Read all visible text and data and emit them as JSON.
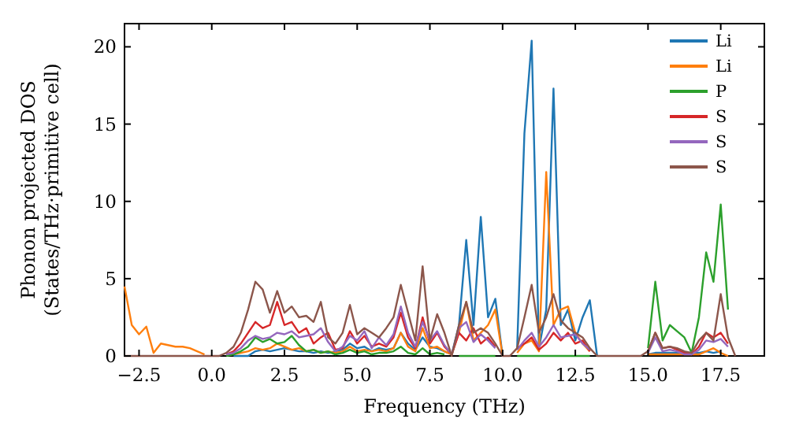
{
  "chart_data": {
    "type": "line",
    "xlabel": "Frequency (THz)",
    "ylabel": "Phonon projected DOS\n(States/THz·primitive cell)",
    "x": [
      -3,
      -2.75,
      -2.5,
      -2.25,
      -2,
      -1.75,
      -1.5,
      -1.25,
      -1,
      -0.75,
      -0.5,
      -0.25,
      0,
      0.25,
      0.5,
      0.75,
      1,
      1.25,
      1.5,
      1.75,
      2,
      2.25,
      2.5,
      2.75,
      3,
      3.25,
      3.5,
      3.75,
      4,
      4.25,
      4.5,
      4.75,
      5,
      5.25,
      5.5,
      5.75,
      6,
      6.25,
      6.5,
      6.75,
      7,
      7.25,
      7.5,
      7.75,
      8,
      8.25,
      8.5,
      8.75,
      9,
      9.25,
      9.5,
      9.75,
      10,
      10.25,
      10.5,
      10.75,
      11,
      11.25,
      11.5,
      11.75,
      12,
      12.25,
      12.5,
      12.75,
      13,
      13.25,
      13.5,
      13.75,
      14,
      14.25,
      14.5,
      14.75,
      15,
      15.25,
      15.5,
      15.75,
      16,
      16.25,
      16.5,
      16.75,
      17,
      17.25,
      17.5,
      17.75,
      18
    ],
    "series": [
      {
        "name": "Li",
        "color": "#1f77b4",
        "values": [
          null,
          null,
          null,
          null,
          null,
          null,
          null,
          null,
          null,
          null,
          null,
          null,
          null,
          null,
          null,
          0,
          0,
          0,
          0.3,
          0.4,
          0.3,
          0.4,
          0.5,
          0.4,
          0.3,
          0.3,
          0.2,
          0.3,
          0.2,
          0.3,
          0.4,
          0.8,
          0.5,
          0.6,
          0.3,
          0.5,
          0.4,
          0.5,
          1.5,
          0.8,
          0.4,
          1.2,
          0.6,
          0.5,
          0.3,
          0.1,
          2,
          7.5,
          2,
          9,
          2.5,
          3.7,
          0,
          null,
          0.5,
          14.4,
          20.4,
          0.5,
          3,
          17.3,
          2,
          3,
          1,
          2.5,
          3.6,
          0,
          null,
          null,
          null,
          null,
          null,
          null,
          0.1,
          0.2,
          0.2,
          0.2,
          0.2,
          0.2,
          0.2,
          0.2,
          0.3,
          0.2,
          0.3,
          null,
          null
        ]
      },
      {
        "name": "Li",
        "color": "#ff7f0e",
        "values": [
          4.5,
          2,
          1.4,
          1.9,
          0.2,
          0.8,
          0.7,
          0.6,
          0.6,
          0.5,
          0.3,
          0.1,
          null,
          null,
          null,
          0.1,
          0.2,
          0.3,
          0.5,
          0.4,
          0.5,
          0.8,
          0.6,
          0.4,
          0.5,
          0.3,
          0.4,
          0.2,
          0.3,
          0.2,
          0.3,
          0.6,
          0.3,
          0.4,
          0.3,
          0.4,
          0.3,
          0.5,
          1.5,
          0.6,
          0.3,
          1.8,
          0.5,
          0.6,
          0.3,
          0.1,
          1.5,
          3.5,
          1,
          1.5,
          2,
          3,
          0,
          null,
          0.2,
          0.8,
          1,
          0.3,
          11.9,
          2,
          3,
          3.2,
          1.5,
          0.8,
          0.3,
          null,
          null,
          null,
          null,
          null,
          null,
          null,
          0.1,
          0.1,
          0.1,
          0.1,
          0.1,
          0.1,
          0.1,
          0.1,
          0.3,
          0.5,
          0.2,
          0,
          null
        ]
      },
      {
        "name": "P",
        "color": "#2ca02c",
        "values": [
          null,
          null,
          null,
          null,
          null,
          null,
          null,
          null,
          null,
          null,
          null,
          null,
          null,
          null,
          0,
          0.1,
          0.3,
          0.6,
          1.2,
          0.9,
          1.1,
          0.8,
          0.9,
          1.3,
          0.7,
          0.3,
          0.4,
          0.2,
          0.3,
          0.1,
          0.2,
          0.4,
          0.2,
          0.3,
          0.1,
          0.2,
          0.2,
          0.3,
          0.6,
          0.2,
          0.1,
          0.5,
          0.1,
          0.2,
          0.1,
          null,
          0,
          0,
          0,
          0,
          0,
          0,
          null,
          null,
          0,
          0,
          0,
          0,
          0,
          0,
          0,
          0,
          0,
          0,
          0,
          null,
          null,
          null,
          null,
          null,
          null,
          null,
          0.5,
          4.8,
          1,
          2,
          1.6,
          1.2,
          0.2,
          2.5,
          6.7,
          4.8,
          9.8,
          3,
          null
        ]
      },
      {
        "name": "S",
        "color": "#d62728",
        "values": [
          null,
          null,
          null,
          null,
          null,
          null,
          null,
          null,
          null,
          null,
          null,
          null,
          null,
          null,
          0.1,
          0.3,
          0.8,
          1.5,
          2.2,
          1.8,
          2,
          3.5,
          2,
          2.2,
          1.5,
          1.8,
          0.8,
          1.2,
          1.5,
          0.4,
          0.5,
          1.6,
          0.8,
          1.3,
          0.6,
          0.8,
          0.6,
          1.2,
          2.8,
          1.2,
          0.5,
          2.5,
          0.8,
          1.5,
          0.6,
          0.1,
          1.5,
          1,
          1.8,
          0.8,
          1.2,
          0.6,
          null,
          null,
          0.5,
          0.8,
          1.2,
          0.4,
          0.8,
          1.5,
          1,
          1.5,
          0.8,
          1,
          0.3,
          null,
          null,
          null,
          null,
          null,
          null,
          null,
          0.3,
          1.5,
          0.5,
          0.6,
          0.4,
          0.2,
          0.1,
          0.6,
          1.5,
          1.2,
          1.5,
          0.8,
          null
        ]
      },
      {
        "name": "S",
        "color": "#9467bd",
        "values": [
          null,
          null,
          null,
          null,
          null,
          null,
          null,
          null,
          null,
          null,
          null,
          null,
          null,
          null,
          0.1,
          0.2,
          0.5,
          1,
          1.3,
          1.1,
          1.2,
          1.5,
          1.4,
          1.6,
          1.2,
          1.3,
          1.4,
          1.8,
          0.9,
          0.3,
          0.6,
          1.3,
          1,
          1.6,
          0.5,
          1.2,
          0.7,
          1.4,
          3.2,
          1.5,
          0.6,
          2.2,
          1,
          1.6,
          0.7,
          0.1,
          1.8,
          2.2,
          0.9,
          1.4,
          1,
          0.5,
          null,
          null,
          0.4,
          1,
          1.5,
          0.6,
          1.2,
          2,
          1.2,
          1.3,
          1.4,
          0.8,
          0.4,
          null,
          null,
          null,
          null,
          null,
          null,
          null,
          0.2,
          1.2,
          0.3,
          0.4,
          0.3,
          0.1,
          0.1,
          0.4,
          1,
          0.9,
          1.1,
          0.6,
          null
        ]
      },
      {
        "name": "S",
        "color": "#8c564b",
        "values": [
          0,
          0,
          0,
          0,
          0,
          0,
          0,
          0,
          0,
          0,
          0,
          0,
          0,
          0,
          0.2,
          0.6,
          1.5,
          3,
          4.8,
          4.3,
          2.8,
          4.2,
          2.8,
          3.2,
          2.5,
          2.6,
          2.2,
          3.5,
          1.2,
          0.8,
          1.5,
          3.3,
          1.4,
          1.8,
          1.5,
          1.2,
          1.8,
          2.5,
          4.6,
          2.8,
          1,
          5.8,
          1,
          2.7,
          1.5,
          0,
          2,
          3.5,
          1.5,
          1.8,
          1.5,
          0.8,
          0,
          0,
          0.5,
          2.5,
          4.6,
          1.5,
          2.5,
          4,
          2.3,
          1.8,
          1.5,
          1.2,
          0.5,
          0,
          0,
          0,
          0,
          0,
          0,
          0,
          0.3,
          1.5,
          0.5,
          0.6,
          0.5,
          0.3,
          0.2,
          1,
          1.5,
          1,
          4,
          1.2,
          0
        ]
      }
    ],
    "xlim": [
      -3,
      19
    ],
    "ylim": [
      0,
      21.5
    ],
    "xticks": [
      {
        "value": -2.5,
        "label": "−2.5"
      },
      {
        "value": 0,
        "label": "0.0"
      },
      {
        "value": 2.5,
        "label": "2.5"
      },
      {
        "value": 5,
        "label": "5.0"
      },
      {
        "value": 7.5,
        "label": "7.5"
      },
      {
        "value": 10,
        "label": "10.0"
      },
      {
        "value": 12.5,
        "label": "12.5"
      },
      {
        "value": 15,
        "label": "15.0"
      },
      {
        "value": 17.5,
        "label": "17.5"
      }
    ],
    "yticks": [
      0,
      5,
      10,
      15,
      20
    ],
    "legend": "top right",
    "grid": false,
    "marker": "none",
    "line_style": "solid"
  }
}
